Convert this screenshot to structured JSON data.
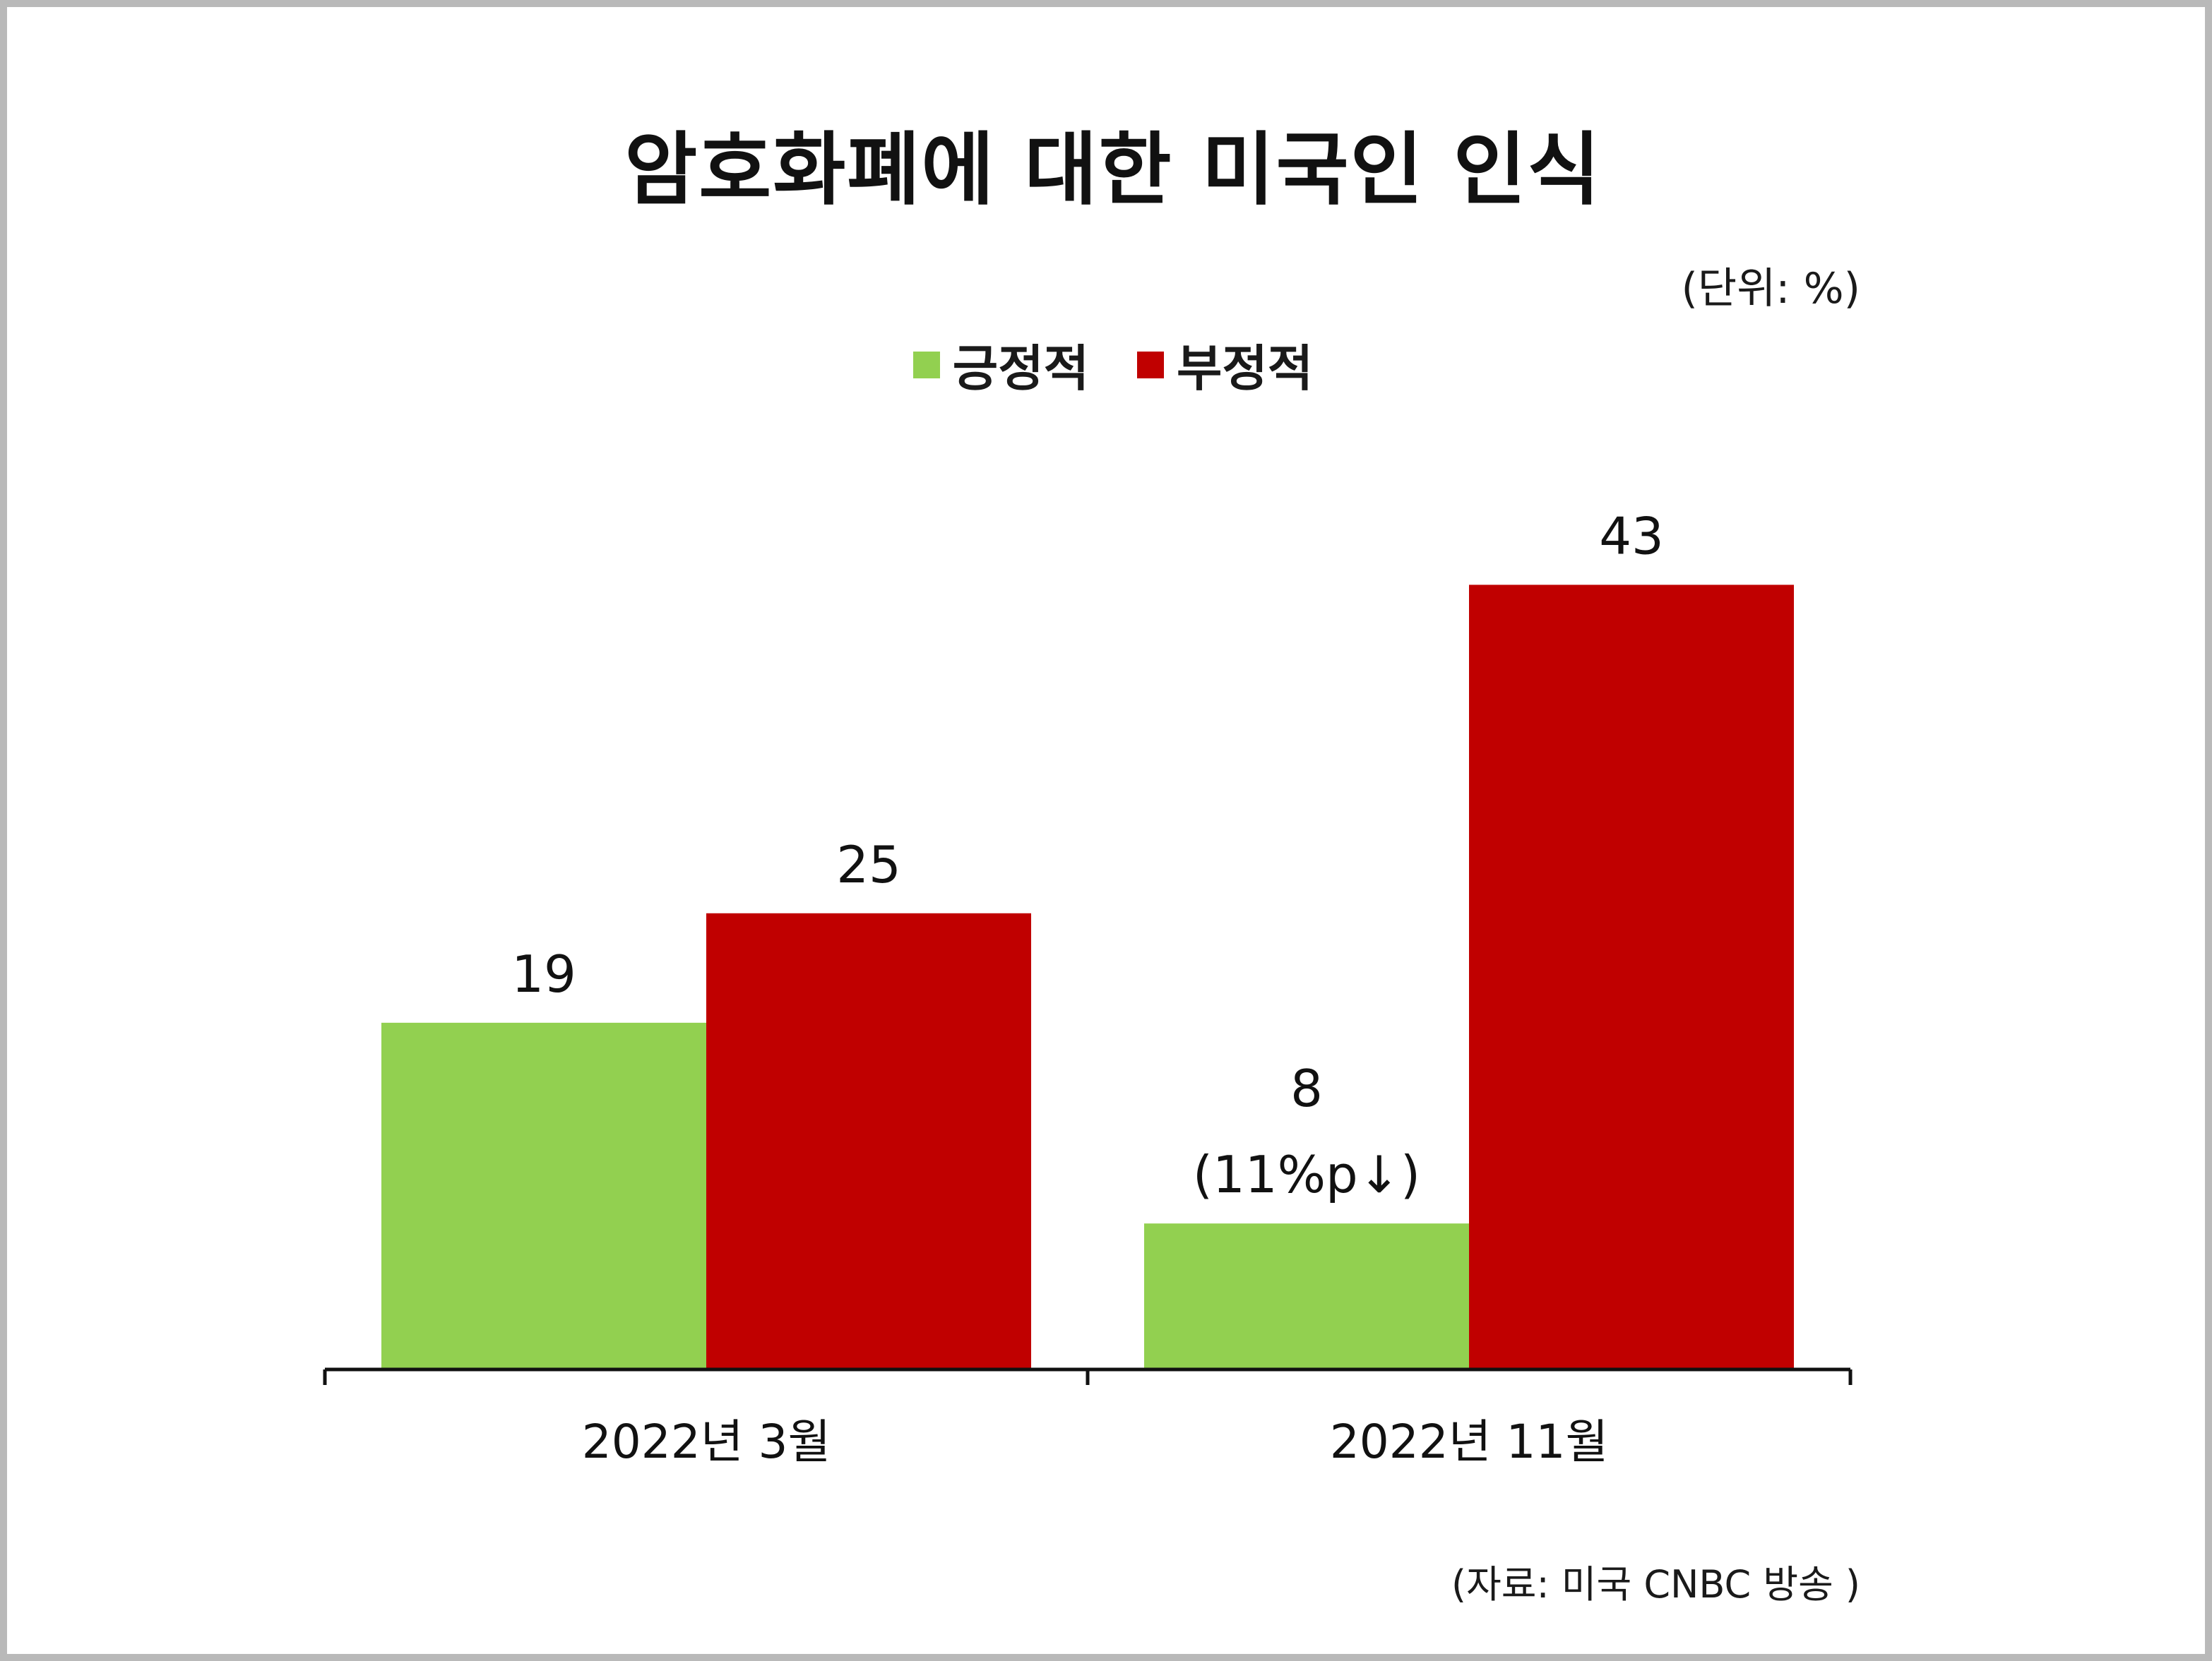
{
  "header": {
    "title": "암호화폐에 대한 미국인 인식",
    "unit": "(단위: %)"
  },
  "footer": {
    "source": "(자료: 미국 CNBC 방송 )"
  },
  "colors": {
    "positive": "#92d050",
    "negative": "#c00000",
    "text": "#111111",
    "frame": "#b9b9b9"
  },
  "chart_data": {
    "type": "bar",
    "categories": [
      "2022년 3월",
      "2022년 11월"
    ],
    "series": [
      {
        "name": "긍정적",
        "color": "#92d050",
        "values": [
          19,
          8
        ],
        "labels": [
          "19",
          "8"
        ]
      },
      {
        "name": "부정적",
        "color": "#c00000",
        "values": [
          25,
          43
        ],
        "labels": [
          "25",
          "43"
        ]
      }
    ],
    "annotations": [
      {
        "series": "긍정적",
        "category": "2022년 11월",
        "text": "(11%p↓)"
      }
    ],
    "ylim": [
      0,
      46
    ],
    "grid": false,
    "legend_position": "top-center",
    "xlabel": "",
    "ylabel": ""
  }
}
